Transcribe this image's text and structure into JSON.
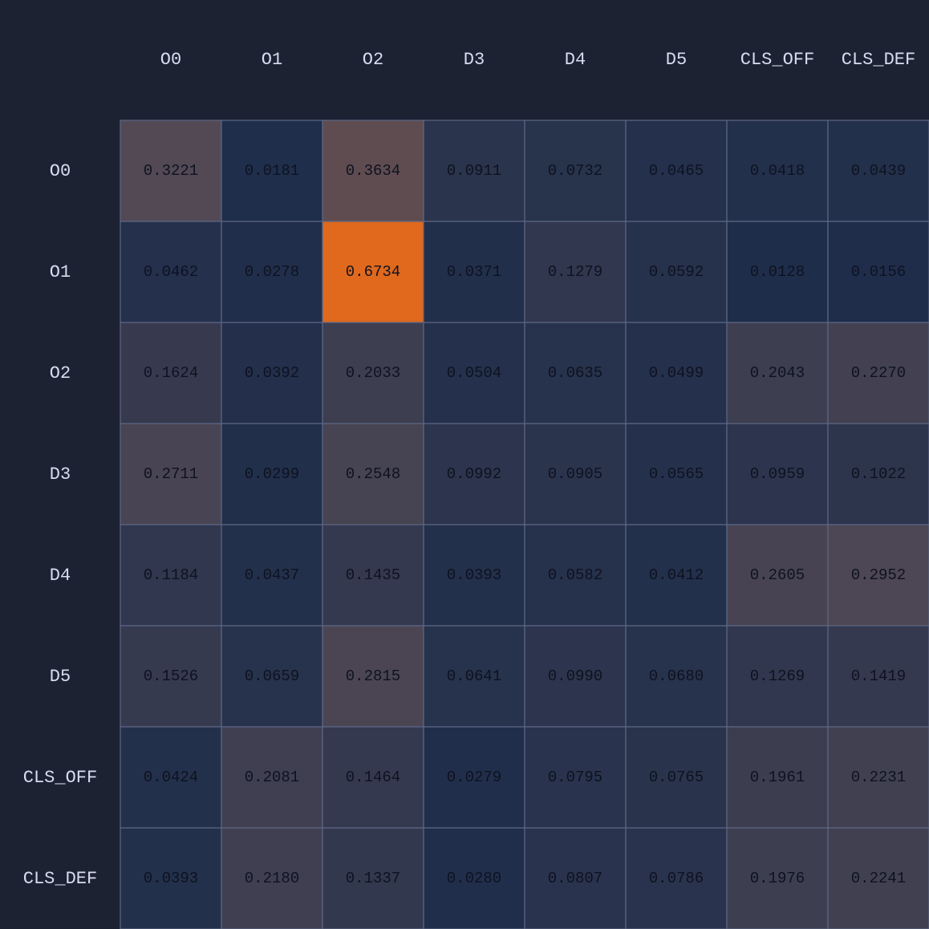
{
  "chart_data": {
    "type": "heatmap",
    "x_labels": [
      "O0",
      "O1",
      "O2",
      "D3",
      "D4",
      "D5",
      "CLS_OFF",
      "CLS_DEF"
    ],
    "y_labels": [
      "O0",
      "O1",
      "O2",
      "D3",
      "D4",
      "D5",
      "CLS_OFF",
      "CLS_DEF"
    ],
    "values": [
      [
        0.3221,
        0.0181,
        0.3634,
        0.0911,
        0.0732,
        0.0465,
        0.0418,
        0.0439
      ],
      [
        0.0462,
        0.0278,
        0.6734,
        0.0371,
        0.1279,
        0.0592,
        0.0128,
        0.0156
      ],
      [
        0.1624,
        0.0392,
        0.2033,
        0.0504,
        0.0635,
        0.0499,
        0.2043,
        0.227
      ],
      [
        0.2711,
        0.0299,
        0.2548,
        0.0992,
        0.0905,
        0.0565,
        0.0959,
        0.1022
      ],
      [
        0.1184,
        0.0437,
        0.1435,
        0.0393,
        0.0582,
        0.0412,
        0.2605,
        0.2952
      ],
      [
        0.1526,
        0.0659,
        0.2815,
        0.0641,
        0.099,
        0.068,
        0.1269,
        0.1419
      ],
      [
        0.0424,
        0.2081,
        0.1464,
        0.0279,
        0.0795,
        0.0765,
        0.1961,
        0.2231
      ],
      [
        0.0393,
        0.218,
        0.1337,
        0.028,
        0.0807,
        0.0786,
        0.1976,
        0.2241
      ]
    ],
    "value_range": [
      0,
      0.6734
    ],
    "colors": {
      "background": "#1d2233",
      "low": "#1c2c4a",
      "mid": "#544a55",
      "high": "#e0691d",
      "grid": "#5d6785",
      "axis_text": "#d7ddf0",
      "cell_text": "#0e1220"
    }
  }
}
